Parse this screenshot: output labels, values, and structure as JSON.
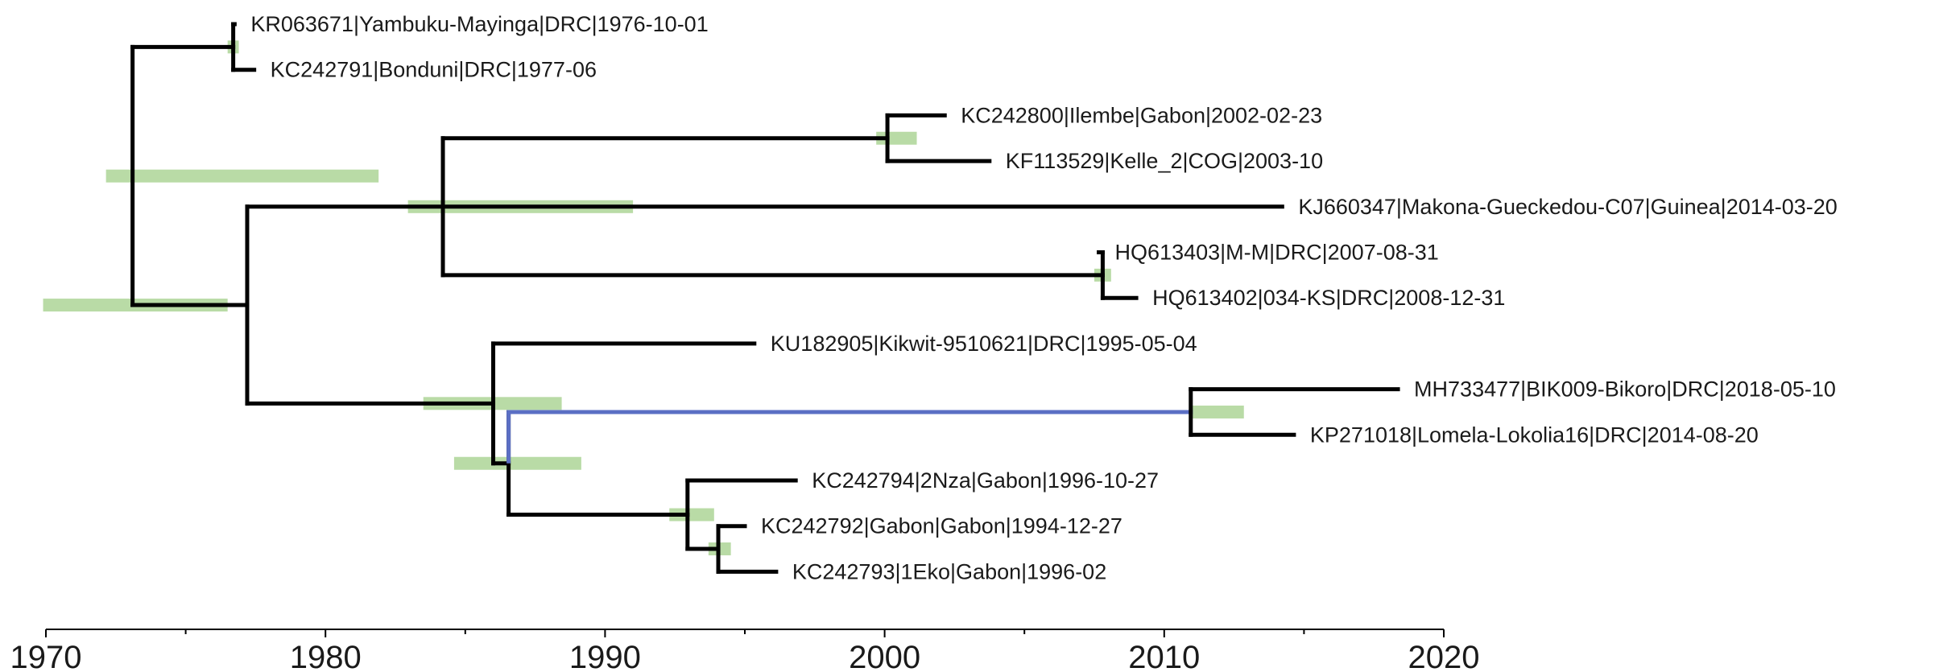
{
  "colors": {
    "branch": "#000000",
    "highlight": "#5b6fc4",
    "hpd_bar": "#b9dba6",
    "axis": "#000000",
    "text": "#1a1a1a"
  },
  "chart_data": {
    "type": "phylogenetic-tree",
    "x_axis": {
      "min": 1970,
      "max": 2020,
      "major_ticks": [
        1970,
        1980,
        1990,
        2000,
        2010,
        2020
      ],
      "minor_step": 5,
      "label": ""
    },
    "tips": [
      {
        "id": "t1",
        "label": "KR063671|Yambuku-Mayinga|DRC|1976-10-01",
        "date": 1976.75
      },
      {
        "id": "t2",
        "label": "KC242791|Bonduni|DRC|1977-06",
        "date": 1977.45
      },
      {
        "id": "t3",
        "label": "KC242800|Ilembe|Gabon|2002-02-23",
        "date": 2002.15
      },
      {
        "id": "t4",
        "label": "KF113529|Kelle_2|COG|2003-10",
        "date": 2003.75
      },
      {
        "id": "t5",
        "label": "KJ660347|Makona-Gueckedou-C07|Guinea|2014-03-20",
        "date": 2014.22
      },
      {
        "id": "t6",
        "label": "HQ613403|M-M|DRC|2007-08-31",
        "date": 2007.66
      },
      {
        "id": "t7",
        "label": "HQ613402|034-KS|DRC|2008-12-31",
        "date": 2009.0
      },
      {
        "id": "t8",
        "label": "KU182905|Kikwit-9510621|DRC|1995-05-04",
        "date": 1995.34
      },
      {
        "id": "t9",
        "label": "MH733477|BIK009-Bikoro|DRC|2018-05-10",
        "date": 2018.36
      },
      {
        "id": "t10",
        "label": "KP271018|Lomela-Lokolia16|DRC|2014-08-20",
        "date": 2014.64
      },
      {
        "id": "t11",
        "label": "KC242794|2Nza|Gabon|1996-10-27",
        "date": 1996.82
      },
      {
        "id": "t12",
        "label": "KC242792|Gabon|Gabon|1994-12-27",
        "date": 1995.0
      },
      {
        "id": "t13",
        "label": "KC242793|1Eko|Gabon|1996-02",
        "date": 1996.12
      }
    ],
    "nodes": [
      {
        "id": "root",
        "date": 1973.1,
        "children": [
          "n1",
          "n2"
        ],
        "hpd": [
          1972.15,
          1981.9
        ]
      },
      {
        "id": "n1",
        "date": 1976.7,
        "children": [
          "t1",
          "t2"
        ],
        "hpd": [
          1976.5,
          1976.9
        ]
      },
      {
        "id": "n2",
        "date": 1977.2,
        "children": [
          "n3",
          "n6"
        ],
        "hpd": [
          1969.9,
          1976.5
        ]
      },
      {
        "id": "n3",
        "date": 1984.2,
        "children": [
          "n4",
          "t5",
          "n5"
        ],
        "hpd": [
          1982.95,
          1991.0
        ]
      },
      {
        "id": "n4",
        "date": 2000.1,
        "children": [
          "t3",
          "t4"
        ],
        "hpd": [
          1999.7,
          2001.15
        ]
      },
      {
        "id": "n5",
        "date": 2007.8,
        "children": [
          "t6",
          "t7"
        ],
        "hpd": [
          2007.5,
          2008.1
        ]
      },
      {
        "id": "n6",
        "date": 1986.0,
        "children": [
          "t8",
          "n7"
        ],
        "hpd": [
          1983.5,
          1988.45
        ]
      },
      {
        "id": "n7",
        "date": 1986.55,
        "children": [
          "n8",
          "n9"
        ],
        "hpd": [
          1984.6,
          1989.15
        ]
      },
      {
        "id": "n8",
        "date": 2010.95,
        "children": [
          "t9",
          "t10"
        ],
        "hpd": [
          2011.0,
          2012.85
        ],
        "highlight": true
      },
      {
        "id": "n9",
        "date": 1992.95,
        "children": [
          "t11",
          "n10"
        ],
        "hpd": [
          1992.3,
          1993.9
        ]
      },
      {
        "id": "n10",
        "date": 1994.05,
        "children": [
          "t12",
          "t13"
        ],
        "hpd": [
          1993.7,
          1994.5
        ]
      }
    ]
  }
}
